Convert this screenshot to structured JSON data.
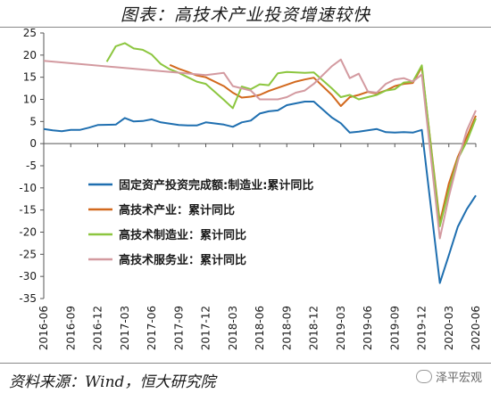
{
  "title": "图表：高技术产业投资增速较快",
  "source": "资料来源：Wind，恒大研究院",
  "watermark": "泽平宏观",
  "chart_data": {
    "type": "line",
    "ylim": [
      -35,
      25
    ],
    "yticks": [
      -35,
      -30,
      -25,
      -20,
      -15,
      -10,
      -5,
      0,
      5,
      10,
      15,
      20,
      25
    ],
    "x_tick_labels": [
      "2016-06",
      "2016-09",
      "2016-12",
      "2017-03",
      "2017-06",
      "2017-09",
      "2017-12",
      "2018-03",
      "2018-06",
      "2018-09",
      "2018-12",
      "2019-03",
      "2019-06",
      "2019-09",
      "2019-12",
      "2020-03",
      "2020-06"
    ],
    "x_range": [
      "2016-06",
      "2020-06"
    ],
    "legend_position": "center-left",
    "grid": false,
    "series": [
      {
        "name": "固定资产投资完成额:制造业:累计同比",
        "color": "#1f6fb0",
        "points": [
          [
            "2016-06",
            3.3
          ],
          [
            "2016-07",
            3.0
          ],
          [
            "2016-08",
            2.8
          ],
          [
            "2016-09",
            3.1
          ],
          [
            "2016-10",
            3.1
          ],
          [
            "2016-11",
            3.6
          ],
          [
            "2016-12",
            4.2
          ],
          [
            "2017-02",
            4.3
          ],
          [
            "2017-03",
            5.8
          ],
          [
            "2017-04",
            5.0
          ],
          [
            "2017-05",
            5.1
          ],
          [
            "2017-06",
            5.5
          ],
          [
            "2017-07",
            4.8
          ],
          [
            "2017-08",
            4.5
          ],
          [
            "2017-09",
            4.2
          ],
          [
            "2017-10",
            4.1
          ],
          [
            "2017-11",
            4.1
          ],
          [
            "2017-12",
            4.8
          ],
          [
            "2018-02",
            4.3
          ],
          [
            "2018-03",
            3.8
          ],
          [
            "2018-04",
            4.8
          ],
          [
            "2018-05",
            5.2
          ],
          [
            "2018-06",
            6.8
          ],
          [
            "2018-07",
            7.3
          ],
          [
            "2018-08",
            7.5
          ],
          [
            "2018-09",
            8.7
          ],
          [
            "2018-10",
            9.1
          ],
          [
            "2018-11",
            9.5
          ],
          [
            "2018-12",
            9.5
          ],
          [
            "2019-02",
            5.9
          ],
          [
            "2019-03",
            4.6
          ],
          [
            "2019-04",
            2.5
          ],
          [
            "2019-05",
            2.7
          ],
          [
            "2019-06",
            3.0
          ],
          [
            "2019-07",
            3.3
          ],
          [
            "2019-08",
            2.6
          ],
          [
            "2019-09",
            2.5
          ],
          [
            "2019-10",
            2.6
          ],
          [
            "2019-11",
            2.5
          ],
          [
            "2019-12",
            3.1
          ],
          [
            "2020-02",
            -31.5
          ],
          [
            "2020-03",
            -25.2
          ],
          [
            "2020-04",
            -18.8
          ],
          [
            "2020-05",
            -14.8
          ],
          [
            "2020-06",
            -11.7
          ]
        ]
      },
      {
        "name": "高技术产业：累计同比",
        "color": "#d2691e",
        "points": [
          [
            "2017-08",
            17.8
          ],
          [
            "2017-09",
            16.9
          ],
          [
            "2017-10",
            16.2
          ],
          [
            "2017-11",
            15.4
          ],
          [
            "2017-12",
            15.0
          ],
          [
            "2018-02",
            13.0
          ],
          [
            "2018-03",
            11.5
          ],
          [
            "2018-04",
            10.4
          ],
          [
            "2018-05",
            10.6
          ],
          [
            "2018-06",
            11.0
          ],
          [
            "2018-07",
            11.9
          ],
          [
            "2018-08",
            12.6
          ],
          [
            "2018-09",
            13.3
          ],
          [
            "2018-10",
            14.0
          ],
          [
            "2018-11",
            14.5
          ],
          [
            "2018-12",
            14.9
          ],
          [
            "2019-02",
            11.0
          ],
          [
            "2019-03",
            8.5
          ],
          [
            "2019-04",
            10.5
          ],
          [
            "2019-05",
            11.0
          ],
          [
            "2019-06",
            11.7
          ],
          [
            "2019-07",
            11.3
          ],
          [
            "2019-08",
            12.0
          ],
          [
            "2019-09",
            13.0
          ],
          [
            "2019-10",
            13.5
          ],
          [
            "2019-11",
            13.7
          ],
          [
            "2019-12",
            17.3
          ],
          [
            "2020-02",
            -17.8
          ],
          [
            "2020-03",
            -9.0
          ],
          [
            "2020-04",
            -3.0
          ],
          [
            "2020-05",
            1.5
          ],
          [
            "2020-06",
            6.3
          ]
        ]
      },
      {
        "name": "高技术制造业：累计同比",
        "color": "#8cc63f",
        "points": [
          [
            "2017-01",
            18.5
          ],
          [
            "2017-02",
            22.0
          ],
          [
            "2017-03",
            22.7
          ],
          [
            "2017-04",
            21.5
          ],
          [
            "2017-05",
            21.2
          ],
          [
            "2017-06",
            20.1
          ],
          [
            "2017-07",
            18.0
          ],
          [
            "2017-08",
            16.8
          ],
          [
            "2017-09",
            16.0
          ],
          [
            "2017-10",
            15.0
          ],
          [
            "2017-11",
            14.0
          ],
          [
            "2017-12",
            13.5
          ],
          [
            "2018-02",
            9.9
          ],
          [
            "2018-03",
            8.0
          ],
          [
            "2018-04",
            12.9
          ],
          [
            "2018-05",
            12.3
          ],
          [
            "2018-06",
            13.4
          ],
          [
            "2018-07",
            13.2
          ],
          [
            "2018-08",
            15.9
          ],
          [
            "2018-09",
            16.2
          ],
          [
            "2018-10",
            16.1
          ],
          [
            "2018-11",
            16.0
          ],
          [
            "2018-12",
            16.1
          ],
          [
            "2019-02",
            12.5
          ],
          [
            "2019-03",
            10.5
          ],
          [
            "2019-04",
            11.0
          ],
          [
            "2019-05",
            10.0
          ],
          [
            "2019-06",
            10.5
          ],
          [
            "2019-07",
            11.0
          ],
          [
            "2019-08",
            12.0
          ],
          [
            "2019-09",
            12.3
          ],
          [
            "2019-10",
            13.8
          ],
          [
            "2019-11",
            14.0
          ],
          [
            "2019-12",
            17.7
          ],
          [
            "2020-02",
            -18.7
          ],
          [
            "2020-03",
            -10.5
          ],
          [
            "2020-04",
            -3.5
          ],
          [
            "2020-05",
            0.5
          ],
          [
            "2020-06",
            5.7
          ]
        ]
      },
      {
        "name": "高技术服务业：累计同比",
        "color": "#d39aa0",
        "points": [
          [
            "2016-06",
            18.7
          ],
          [
            "2017-12",
            15.5
          ],
          [
            "2018-02",
            16.0
          ],
          [
            "2018-03",
            13.0
          ],
          [
            "2018-04",
            12.5
          ],
          [
            "2018-05",
            12.0
          ],
          [
            "2018-06",
            10.0
          ],
          [
            "2018-07",
            10.0
          ],
          [
            "2018-08",
            10.0
          ],
          [
            "2018-09",
            10.5
          ],
          [
            "2018-10",
            11.5
          ],
          [
            "2018-11",
            12.0
          ],
          [
            "2018-12",
            13.5
          ],
          [
            "2019-02",
            17.5
          ],
          [
            "2019-03",
            19.0
          ],
          [
            "2019-04",
            14.8
          ],
          [
            "2019-05",
            15.8
          ],
          [
            "2019-06",
            11.8
          ],
          [
            "2019-07",
            11.5
          ],
          [
            "2019-08",
            13.5
          ],
          [
            "2019-09",
            14.5
          ],
          [
            "2019-10",
            14.8
          ],
          [
            "2019-11",
            14.0
          ],
          [
            "2019-12",
            15.6
          ],
          [
            "2020-02",
            -21.4
          ],
          [
            "2020-03",
            -12.0
          ],
          [
            "2020-04",
            -4.0
          ],
          [
            "2020-05",
            3.0
          ],
          [
            "2020-06",
            7.5
          ]
        ]
      }
    ]
  }
}
